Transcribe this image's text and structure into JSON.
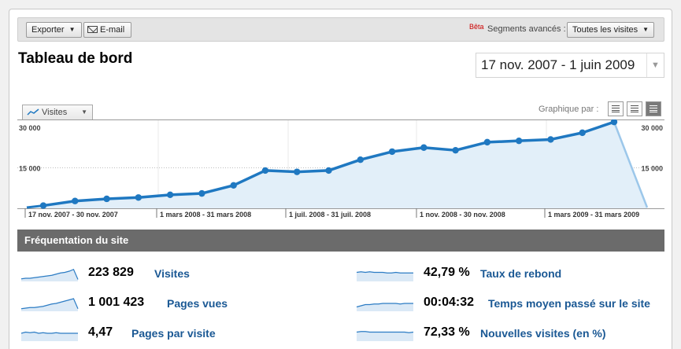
{
  "toolbar": {
    "export_label": "Exporter",
    "email_label": "E-mail",
    "beta_label": "Bêta",
    "segments_label": "Segments avancés :",
    "segments_value": "Toutes les visites"
  },
  "page_title": "Tableau de bord",
  "date_range": "17 nov. 2007 - 1 juin 2009",
  "graph": {
    "metric_selector": "Visites",
    "graph_by_label": "Graphique par :"
  },
  "chart_data": {
    "type": "area",
    "y_ticks": [
      "30 000",
      "15 000"
    ],
    "ylim": [
      0,
      30000
    ],
    "x_labels": [
      "17 nov. 2007 - 30 nov. 2007",
      "1 mars 2008 - 31 mars 2008",
      "1 juil. 2008 - 31 juil. 2008",
      "1 nov. 2008 - 30 nov. 2008",
      "1 mars 2009 - 31 mars 2009"
    ],
    "values": [
      1000,
      2700,
      3500,
      4000,
      5000,
      5500,
      8500,
      14000,
      13500,
      14000,
      18000,
      21000,
      22500,
      21500,
      24500,
      25000,
      25500,
      28000,
      32000,
      0
    ],
    "marker_count": 18,
    "colors": {
      "line": "#1f78c1",
      "fill": "#e2eff9",
      "tail": "#9cc7ea"
    }
  },
  "site_section": {
    "title": "Fréquentation du site",
    "metrics": [
      {
        "value": "223 829",
        "label": "Visites",
        "spark": [
          3,
          4,
          4,
          5,
          6,
          7,
          8,
          9,
          11,
          13,
          14,
          16,
          19,
          2
        ]
      },
      {
        "value": "1 001 423",
        "label": "Pages vues",
        "spark": [
          3,
          4,
          5,
          5,
          6,
          7,
          9,
          11,
          12,
          14,
          16,
          18,
          20,
          3
        ]
      },
      {
        "value": "4,47",
        "label": "Pages par visite",
        "spark": [
          12,
          14,
          13,
          14,
          12,
          13,
          12,
          12,
          13,
          12,
          12,
          12,
          12,
          12
        ]
      },
      {
        "value": "42,79 %",
        "label": "Taux de rebond",
        "spark": [
          14,
          15,
          14,
          15,
          14,
          14,
          14,
          13,
          13,
          14,
          13,
          13,
          13,
          13
        ]
      },
      {
        "value": "00:04:32",
        "label": "Temps moyen passé sur le site",
        "spark": [
          6,
          8,
          10,
          10,
          11,
          11,
          12,
          12,
          12,
          12,
          11,
          12,
          12,
          12
        ]
      },
      {
        "value": "72,33 %",
        "label": "Nouvelles visites (en %)",
        "spark": [
          14,
          15,
          15,
          14,
          14,
          14,
          14,
          14,
          14,
          14,
          14,
          14,
          13,
          14
        ]
      }
    ]
  }
}
